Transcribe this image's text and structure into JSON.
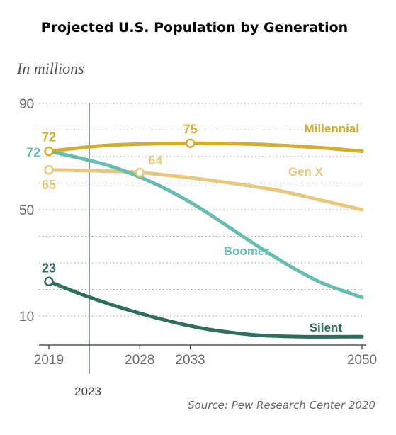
{
  "title": "Projected U.S. Population by Generation",
  "subtitle": "In millions",
  "source": "Source: Pew Research Center 2020",
  "chart_data": {
    "type": "line",
    "title": "Projected U.S. Population by Generation",
    "ylabel": "In millions",
    "xlabel": "",
    "xlim": [
      2019,
      2050
    ],
    "ylim": [
      0,
      90
    ],
    "y_ticks": [
      10,
      50,
      90
    ],
    "x_ticks": [
      2019,
      2028,
      2033,
      2050
    ],
    "grid": "horizontal dotted",
    "reference_line": {
      "x": 2023,
      "label": "2023",
      "color": "#1f3f5f"
    },
    "series": [
      {
        "name": "Millennial",
        "color": "#d3ad2f",
        "width": 5,
        "x": [
          2019,
          2024,
          2028,
          2033,
          2038,
          2042,
          2046,
          2050
        ],
        "y": [
          72,
          74,
          74.7,
          75,
          74.8,
          74.2,
          73.3,
          72
        ],
        "labeled": [
          {
            "x": 2019,
            "y": 72,
            "label": "72"
          },
          {
            "x": 2033,
            "y": 75,
            "label": "75"
          }
        ]
      },
      {
        "name": "Gen X",
        "color": "#e6c97f",
        "width": 5,
        "x": [
          2019,
          2024,
          2028,
          2033,
          2038,
          2042,
          2046,
          2050
        ],
        "y": [
          65,
          64.6,
          64,
          62,
          59.5,
          57,
          53.5,
          50
        ],
        "labeled": [
          {
            "x": 2019,
            "y": 65,
            "label": "65"
          },
          {
            "x": 2028,
            "y": 64,
            "label": "64"
          }
        ]
      },
      {
        "name": "Boomer",
        "color": "#66bdb0",
        "width": 5,
        "x": [
          2019,
          2022,
          2025,
          2028,
          2031,
          2034,
          2037,
          2040,
          2043,
          2046,
          2050
        ],
        "y": [
          72,
          69.5,
          66.5,
          62.3,
          57,
          50.5,
          43,
          35.5,
          28.5,
          22.5,
          17
        ],
        "labeled": [
          {
            "x": 2019,
            "y": 72,
            "label": "72"
          }
        ]
      },
      {
        "name": "Silent",
        "color": "#2f6e5e",
        "width": 5,
        "x": [
          2019,
          2022,
          2025,
          2028,
          2031,
          2034,
          2037,
          2040,
          2044,
          2050
        ],
        "y": [
          23,
          18.5,
          14.5,
          11,
          8,
          5.5,
          3.8,
          2.7,
          2.2,
          2.2
        ],
        "labeled": [
          {
            "x": 2019,
            "y": 23,
            "label": "23"
          }
        ]
      }
    ]
  }
}
